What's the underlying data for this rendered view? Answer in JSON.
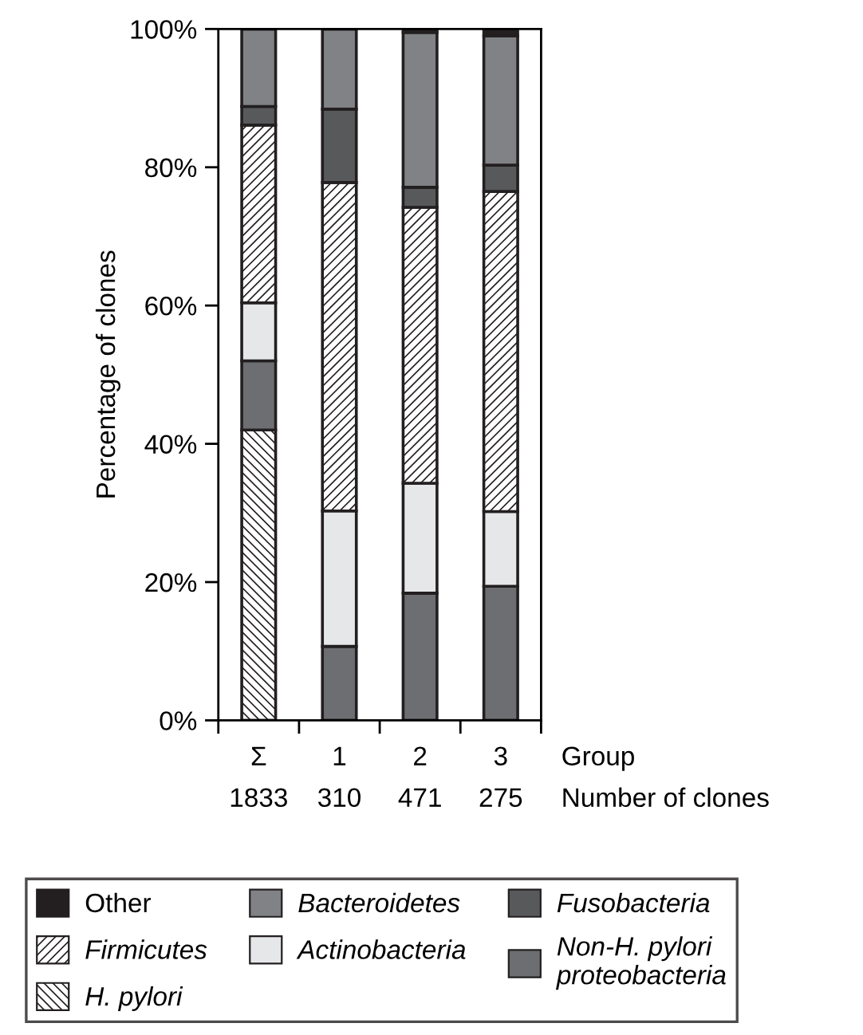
{
  "chart_data": {
    "type": "bar",
    "stacked": true,
    "ylabel": "Percentage of clones",
    "xlabel": "Group",
    "categories": [
      "Σ",
      "1",
      "2",
      "3"
    ],
    "series": [
      {
        "name": "H. pylori",
        "color": "#231f20",
        "values": [
          42,
          0,
          0,
          0
        ]
      },
      {
        "name": "Non-H. pylori proteobacteria",
        "color": "#6d6e71",
        "values": [
          10,
          10.7,
          18.4,
          19.4
        ]
      },
      {
        "name": "Actinobacteria",
        "color": "#e6e7e8",
        "values": [
          8.4,
          19.6,
          15.9,
          10.8
        ]
      },
      {
        "name": "Firmicutes",
        "color": "#231f20",
        "values": [
          25.7,
          47.5,
          39.9,
          46.3
        ]
      },
      {
        "name": "Fusobacteria",
        "color": "#58595b",
        "values": [
          2.7,
          10.6,
          2.9,
          3.8
        ]
      },
      {
        "name": "Bacteroidetes",
        "color": "#808285",
        "values": [
          11.2,
          11.6,
          22.4,
          18.7
        ]
      },
      {
        "name": "Other",
        "color": "#231f20",
        "values": [
          0,
          0,
          0.5,
          1.0
        ]
      }
    ],
    "ylim": [
      0,
      100
    ],
    "yticks": [
      {
        "value": 0,
        "label": "0%"
      },
      {
        "value": 20,
        "label": "20%"
      },
      {
        "value": 40,
        "label": "40%"
      },
      {
        "value": 60,
        "label": "60%"
      },
      {
        "value": 80,
        "label": "80%"
      },
      {
        "value": 100,
        "label": "100%"
      }
    ],
    "annotations": [
      "1833",
      "310",
      "471",
      "275",
      "Number of clones"
    ],
    "legend": "bottom",
    "grid": false
  }
}
